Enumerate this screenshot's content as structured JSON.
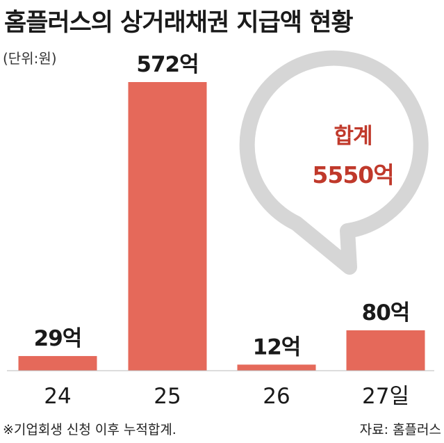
{
  "title": "홈플러스의 상거래채권 지급액 현황",
  "unit": "(단위:원)",
  "footnote": "※기업회생 신청 이후 누적합계.",
  "source": "자료: 홈플러스",
  "colors": {
    "bar": "#e5695a",
    "total_text": "#c0392b",
    "bubble_ring": "#d6d6d6",
    "axis": "#999999"
  },
  "total": {
    "label": "합계",
    "value_label": "5550억"
  },
  "chart_data": {
    "type": "bar",
    "categories": [
      "24",
      "25",
      "26",
      "27일"
    ],
    "values": [
      29,
      572,
      12,
      80
    ],
    "value_labels": [
      "29억",
      "572억",
      "12억",
      "80억"
    ],
    "ylim": [
      0,
      572
    ],
    "grid": false
  }
}
